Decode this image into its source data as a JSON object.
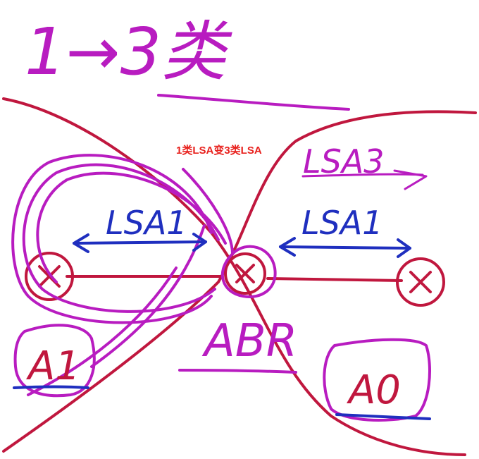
{
  "heading": "1→3类",
  "caption": "1类LSA变3类LSA",
  "labels": {
    "lsa3": "LSA3",
    "lsa1_left": "LSA1",
    "lsa1_right": "LSA1",
    "abr": "ABR",
    "area_left": "A1",
    "area_right": "A0"
  },
  "colors": {
    "pen_magenta": "#b81cc0",
    "pen_crimson": "#c0173e",
    "pen_blue": "#1f2fbf",
    "caption_red": "#e8201c"
  },
  "icons": [
    "router-icon",
    "arrow-icon"
  ]
}
